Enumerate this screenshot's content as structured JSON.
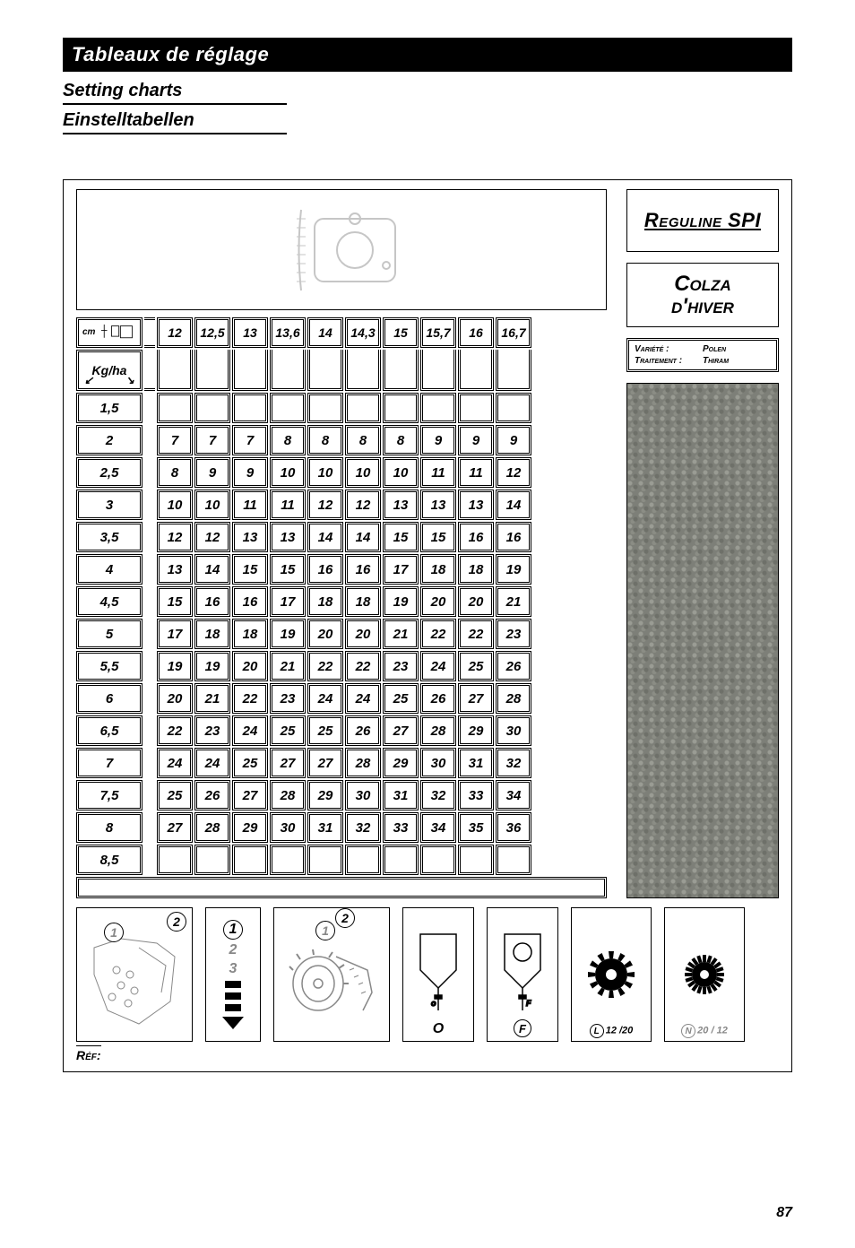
{
  "titles": {
    "fr": "Tableaux de réglage",
    "en": "Setting charts",
    "de": "Einstelltabellen"
  },
  "brand": "Reguline SPI",
  "crop": {
    "line1": "Colza",
    "line2": "d'hiver"
  },
  "variety": {
    "label1": "Variété :",
    "value1": "Polen",
    "label2": "Traitement :",
    "value2": "Thiram"
  },
  "table": {
    "corner_unit": "cm",
    "unit": "Kg/ha",
    "col_headers": [
      "12",
      "12,5",
      "13",
      "13,6",
      "14",
      "14,3",
      "15",
      "15,7",
      "16",
      "16,7"
    ],
    "rows": [
      {
        "h": "1,5",
        "c": [
          "",
          "",
          "",
          "",
          "",
          "",
          "",
          "",
          "",
          ""
        ]
      },
      {
        "h": "2",
        "c": [
          "7",
          "7",
          "7",
          "8",
          "8",
          "8",
          "8",
          "9",
          "9",
          "9"
        ]
      },
      {
        "h": "2,5",
        "c": [
          "8",
          "9",
          "9",
          "10",
          "10",
          "10",
          "10",
          "11",
          "11",
          "12"
        ]
      },
      {
        "h": "3",
        "c": [
          "10",
          "10",
          "11",
          "11",
          "12",
          "12",
          "13",
          "13",
          "13",
          "14"
        ]
      },
      {
        "h": "3,5",
        "c": [
          "12",
          "12",
          "13",
          "13",
          "14",
          "14",
          "15",
          "15",
          "16",
          "16"
        ]
      },
      {
        "h": "4",
        "c": [
          "13",
          "14",
          "15",
          "15",
          "16",
          "16",
          "17",
          "18",
          "18",
          "19"
        ]
      },
      {
        "h": "4,5",
        "c": [
          "15",
          "16",
          "16",
          "17",
          "18",
          "18",
          "19",
          "20",
          "20",
          "21"
        ]
      },
      {
        "h": "5",
        "c": [
          "17",
          "18",
          "18",
          "19",
          "20",
          "20",
          "21",
          "22",
          "22",
          "23"
        ]
      },
      {
        "h": "5,5",
        "c": [
          "19",
          "19",
          "20",
          "21",
          "22",
          "22",
          "23",
          "24",
          "25",
          "26"
        ]
      },
      {
        "h": "6",
        "c": [
          "20",
          "21",
          "22",
          "23",
          "24",
          "24",
          "25",
          "26",
          "27",
          "28"
        ]
      },
      {
        "h": "6,5",
        "c": [
          "22",
          "23",
          "24",
          "25",
          "25",
          "26",
          "27",
          "28",
          "29",
          "30"
        ]
      },
      {
        "h": "7",
        "c": [
          "24",
          "24",
          "25",
          "27",
          "27",
          "28",
          "29",
          "30",
          "31",
          "32"
        ]
      },
      {
        "h": "7,5",
        "c": [
          "25",
          "26",
          "27",
          "28",
          "29",
          "30",
          "31",
          "32",
          "33",
          "34"
        ]
      },
      {
        "h": "8",
        "c": [
          "27",
          "28",
          "29",
          "30",
          "31",
          "32",
          "33",
          "34",
          "35",
          "36"
        ]
      },
      {
        "h": "8,5",
        "c": [
          "",
          "",
          "",
          "",
          "",
          "",
          "",
          "",
          "",
          ""
        ]
      }
    ]
  },
  "icons": {
    "ib1_b1": "1",
    "ib1_b2": "2",
    "ib2": {
      "n1": "1",
      "n2": "2",
      "n3": "3"
    },
    "ib3_b1": "1",
    "ib3_b2": "2",
    "ib4": "O",
    "ib4_center": "O",
    "ib5": "F",
    "ib5_center": "F",
    "ib6": {
      "letter": "L",
      "ratio": "12 /20"
    },
    "ib7": {
      "letter": "N",
      "ratio": "20 / 12"
    }
  },
  "ref": "Réf:",
  "page": "87"
}
